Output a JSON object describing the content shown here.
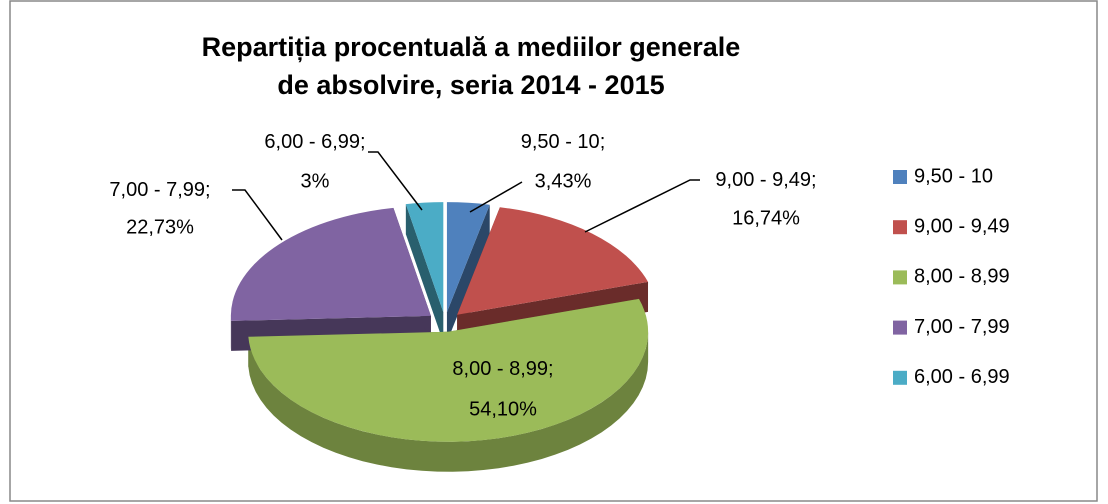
{
  "chart_data": {
    "type": "pie3d",
    "title": "Repartiția procentuală a mediilor generale de absolvire, seria 2014 - 2015",
    "categories": [
      "9,50 - 10",
      "9,00 - 9,49",
      "8,00 - 8,99",
      "7,00 - 7,99",
      "6,00 - 6,99"
    ],
    "values": [
      3.43,
      16.74,
      54.1,
      22.73,
      3
    ],
    "value_labels": [
      "3,43%",
      "16,74%",
      "54,10%",
      "22,73%",
      "3%"
    ],
    "data_label_separator": ";",
    "colors": [
      "#4f81bd",
      "#c0504d",
      "#9bbb59",
      "#8064a2",
      "#4bacc6"
    ],
    "legend": "right"
  }
}
